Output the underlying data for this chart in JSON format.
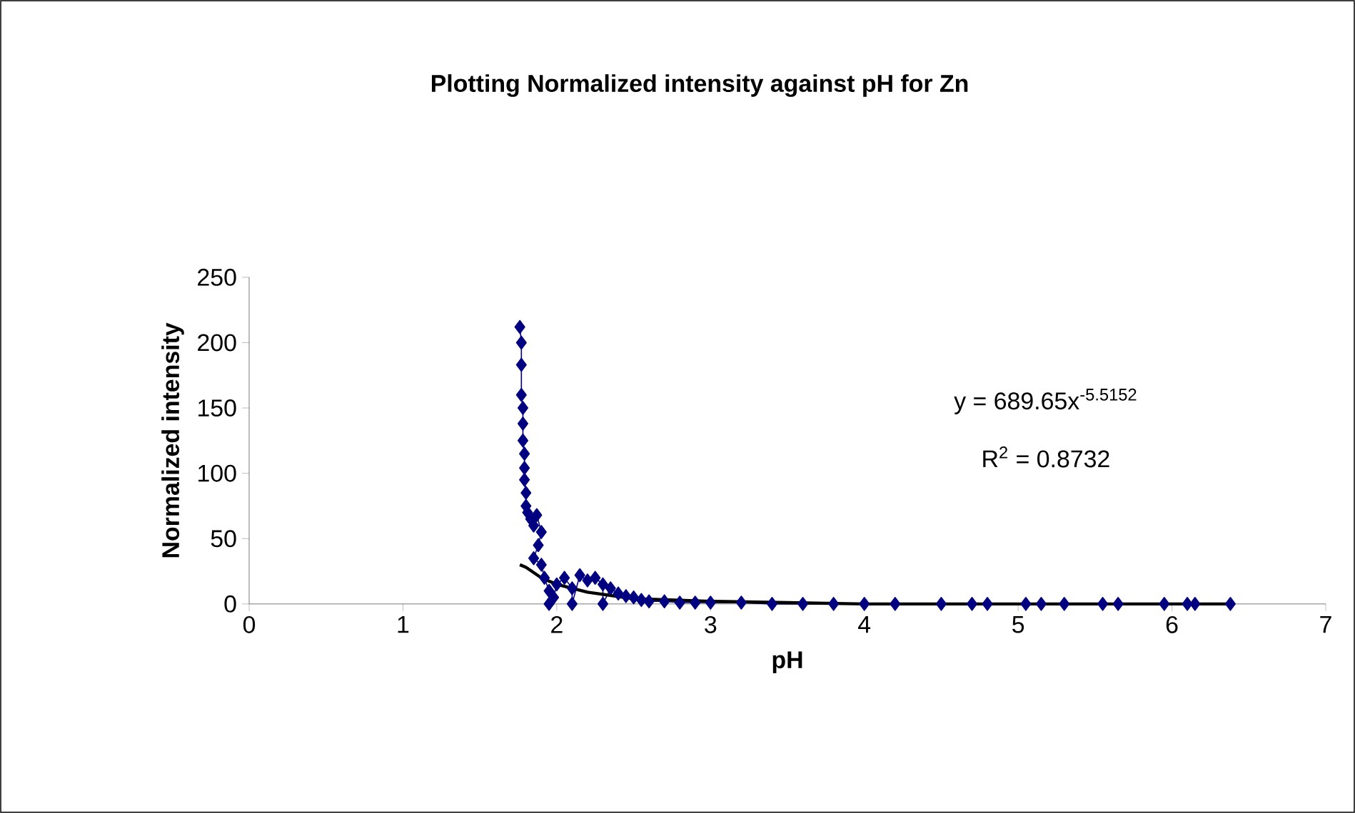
{
  "chart_data": {
    "type": "line",
    "title": "Plotting Normalized intensity against pH for Zn",
    "xlabel": "pH",
    "ylabel": "Normalized intensity",
    "xlim": [
      0,
      7
    ],
    "xticks": [
      0,
      1,
      2,
      3,
      4,
      5,
      6,
      7
    ],
    "ylim": [
      0,
      250
    ],
    "yticks": [
      0,
      50,
      100,
      150,
      200,
      250
    ],
    "grid": false,
    "marker": "diamond",
    "line_style": "solid",
    "annotations": [
      "y = 689.65x$^{-5.5152}$",
      "R$^{2}$ = 0.8732"
    ],
    "series": [
      {
        "color": "#000080",
        "x": [
          1.76,
          1.77,
          1.77,
          1.77,
          1.78,
          1.78,
          1.78,
          1.79,
          1.79,
          1.79,
          1.8,
          1.8,
          1.81,
          1.83,
          1.85,
          1.87,
          1.9,
          1.88,
          1.85,
          1.9,
          1.92,
          1.95,
          1.95,
          1.98,
          2.0,
          2.05,
          2.1,
          2.1,
          2.15,
          2.2,
          2.25,
          2.3,
          2.3,
          2.35,
          2.4,
          2.45,
          2.5,
          2.55,
          2.6,
          2.7,
          2.8,
          2.9,
          3.0,
          3.2,
          3.4,
          3.6,
          3.8,
          4.0,
          4.2,
          4.5,
          4.7,
          4.8,
          5.05,
          5.15,
          5.3,
          5.55,
          5.65,
          5.95,
          6.1,
          6.15,
          6.38
        ],
        "values": [
          212,
          200,
          183,
          160,
          150,
          138,
          125,
          115,
          104,
          95,
          85,
          75,
          70,
          65,
          60,
          68,
          55,
          45,
          35,
          30,
          20,
          10,
          0,
          5,
          15,
          20,
          12,
          0,
          22,
          18,
          20,
          15,
          0,
          12,
          8,
          6,
          5,
          3,
          2,
          2,
          1,
          1,
          1,
          1,
          0,
          0,
          0,
          0,
          0,
          0,
          0,
          0,
          0,
          0,
          0,
          0,
          0,
          0,
          0,
          0,
          0
        ]
      },
      {
        "type": "line",
        "color": "#000000",
        "marker": "none",
        "x": [
          1.76,
          1.8,
          1.9,
          2.0,
          2.2,
          2.5,
          3.0,
          3.5,
          4.0,
          5.0,
          6.4
        ],
        "values": [
          30,
          28,
          20,
          15,
          9,
          4,
          2,
          1,
          0,
          0,
          0
        ]
      }
    ]
  }
}
